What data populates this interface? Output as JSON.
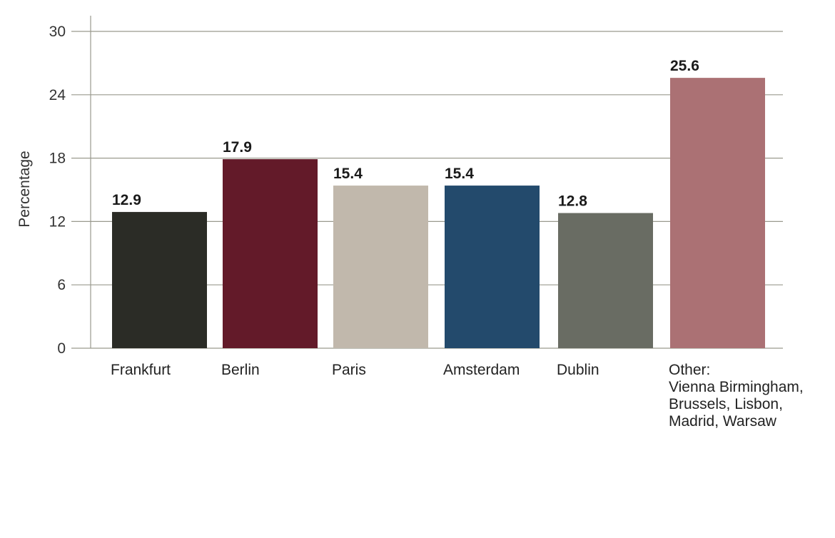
{
  "chart_data": {
    "type": "bar",
    "title": "",
    "xlabel": "",
    "ylabel": "Percentage",
    "ylim": [
      0,
      30
    ],
    "yticks": [
      0,
      6,
      12,
      18,
      24,
      30
    ],
    "grid": true,
    "categories": [
      "Frankfurt",
      "Berlin",
      "Paris",
      "Amsterdam",
      "Dublin",
      [
        "Other:",
        "Vienna Birmingham,",
        "Brussels, Lisbon,",
        "Madrid, Warsaw"
      ]
    ],
    "values": [
      12.9,
      17.9,
      15.4,
      15.4,
      12.8,
      25.6
    ],
    "value_labels": [
      "12.9",
      "17.9",
      "15.4",
      "15.4",
      "12.8",
      "25.6"
    ],
    "colors": [
      "#2b2c26",
      "#631a29",
      "#c1b8ac",
      "#234a6c",
      "#696c63",
      "#ab7174"
    ]
  }
}
